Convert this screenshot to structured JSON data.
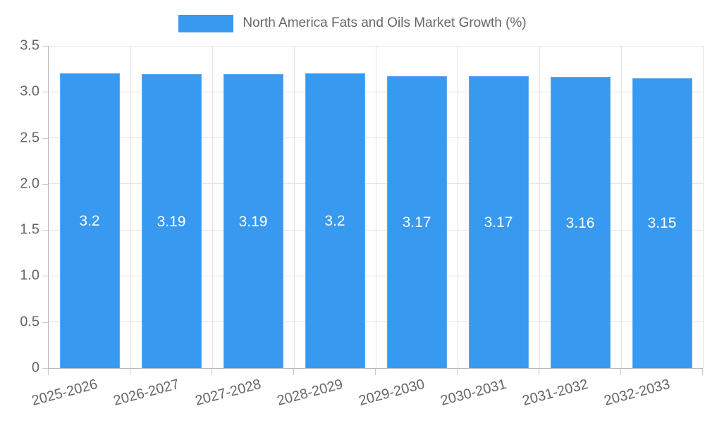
{
  "chart_data": {
    "type": "bar",
    "title": "North America Fats and Oils Market Growth (%)",
    "categories": [
      "2025-2026",
      "2026-2027",
      "2027-2028",
      "2028-2029",
      "2029-2030",
      "2030-2031",
      "2031-2032",
      "2032-2033"
    ],
    "values": [
      3.2,
      3.19,
      3.19,
      3.2,
      3.17,
      3.17,
      3.16,
      3.15
    ],
    "bar_labels": [
      "3.2",
      "3.19",
      "3.19",
      "3.2",
      "3.17",
      "3.17",
      "3.16",
      "3.15"
    ],
    "xlabel": "",
    "ylabel": "",
    "ylim": [
      0,
      3.5
    ],
    "ytick_labels": [
      "0",
      "0.5",
      "1.0",
      "1.5",
      "2.0",
      "2.5",
      "3.0",
      "3.5"
    ],
    "ytick_values": [
      0,
      0.5,
      1.0,
      1.5,
      2.0,
      2.5,
      3.0,
      3.5
    ],
    "grid": "on",
    "legend_position": "top",
    "colors": {
      "bar_fill": "#3899F0",
      "bar_border": "#5fa9f2",
      "bar_label_text": "#ffffff",
      "axis_text": "#666666",
      "grid_line": "#e3e3e3",
      "axis_line": "#b3b3b3",
      "background": "#ffffff"
    }
  }
}
